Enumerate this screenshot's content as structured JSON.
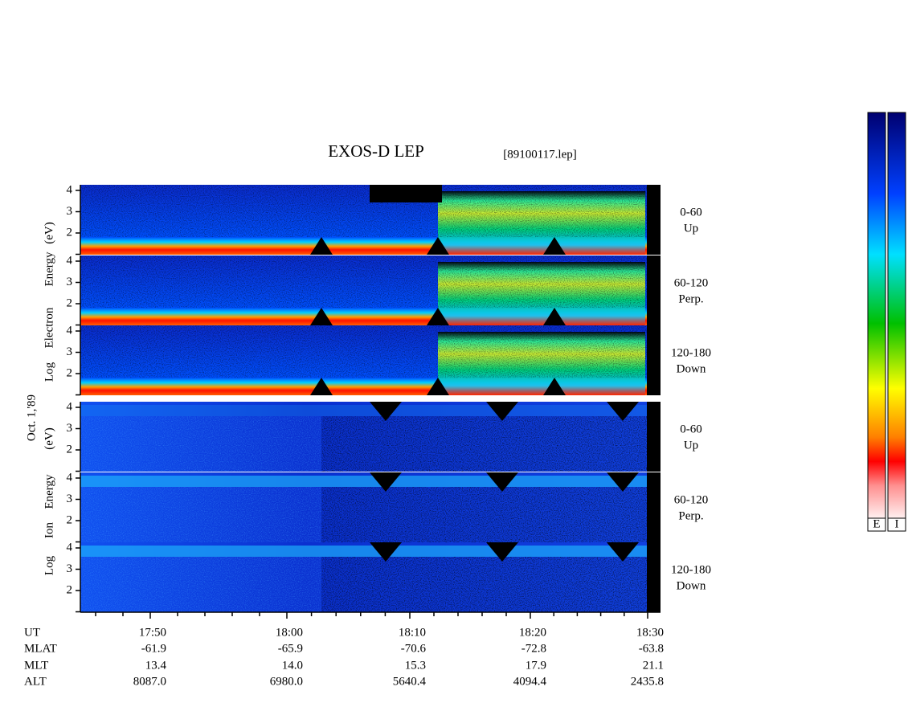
{
  "title": "EXOS-D LEP",
  "file": "[89100117.lep]",
  "date": "Oct. 1,'89",
  "electron_axis": [
    "Log",
    "Electron",
    "Energy",
    "(eV)"
  ],
  "ion_axis": [
    "Log",
    "Ion",
    "Energy",
    "(eV)"
  ],
  "energy_ticks": [
    "2",
    "3",
    "4"
  ],
  "panels": [
    {
      "angle": "0-60",
      "dir": "Up"
    },
    {
      "angle": "60-120",
      "dir": "Perp."
    },
    {
      "angle": "120-180",
      "dir": "Down"
    },
    {
      "angle": "0-60",
      "dir": "Up"
    },
    {
      "angle": "60-120",
      "dir": "Perp."
    },
    {
      "angle": "120-180",
      "dir": "Down"
    }
  ],
  "ephemeris": {
    "labels": [
      "UT",
      "MLAT",
      "MLT",
      "ALT"
    ],
    "rows": [
      [
        "17:50",
        "18:00",
        "18:10",
        "18:20",
        "18:30"
      ],
      [
        "-61.9",
        "-65.9",
        "-70.6",
        "-72.8",
        "-63.8"
      ],
      [
        "13.4",
        "14.0",
        "15.3",
        "17.9",
        "21.1"
      ],
      [
        "8087.0",
        "6980.0",
        "5640.4",
        "4094.4",
        "2435.8"
      ]
    ]
  },
  "colorbar_labels": [
    "E",
    "I"
  ]
}
